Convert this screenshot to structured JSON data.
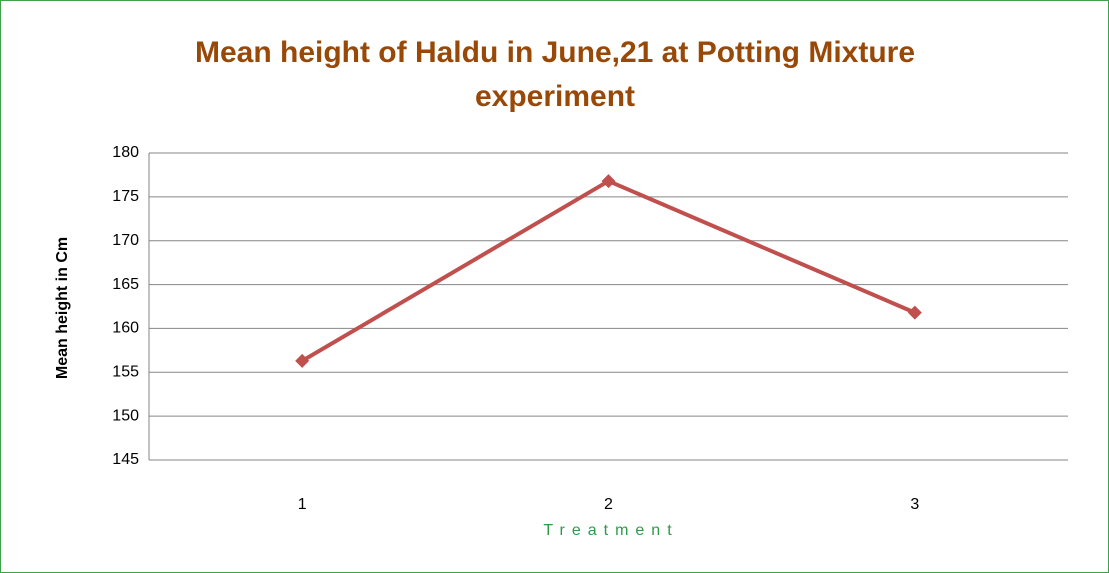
{
  "chart_data": {
    "type": "line",
    "title": "Mean height of Haldu in June,21 at Potting Mixture experiment",
    "x_label": "Treatment",
    "y_label": "Mean height in Cm",
    "categories": [
      "1",
      "2",
      "3"
    ],
    "series": [
      {
        "name": "Mean height",
        "color": "#c0504d",
        "values": [
          156.3,
          176.8,
          161.8
        ]
      }
    ],
    "ylim": [
      145,
      180
    ],
    "yticks": [
      145,
      150,
      155,
      160,
      165,
      170,
      175,
      180
    ],
    "grid": true
  }
}
